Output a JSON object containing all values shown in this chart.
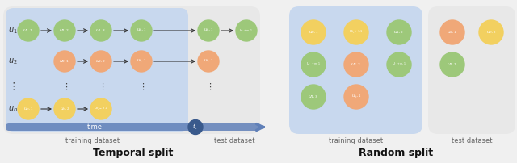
{
  "bg_color": "#f0f0f0",
  "temporal_outer_color": "#dde5f0",
  "temporal_train_color": "#c8d8ee",
  "temporal_test_color": "#e8e8e8",
  "random_train_color": "#c8d8ee",
  "random_test_color": "#e8e8e8",
  "green_color": "#9dc87a",
  "orange_color": "#f0a878",
  "yellow_color": "#f2d060",
  "dark_blue": "#3a5a8c",
  "arrow_bar_color": "#6080b8",
  "label_color": "#666666",
  "title_color": "#111111",
  "temporal_title": "Temporal split",
  "random_title": "Random split",
  "train_label": "training dataset",
  "test_label": "test dataset",
  "time_label": "time"
}
